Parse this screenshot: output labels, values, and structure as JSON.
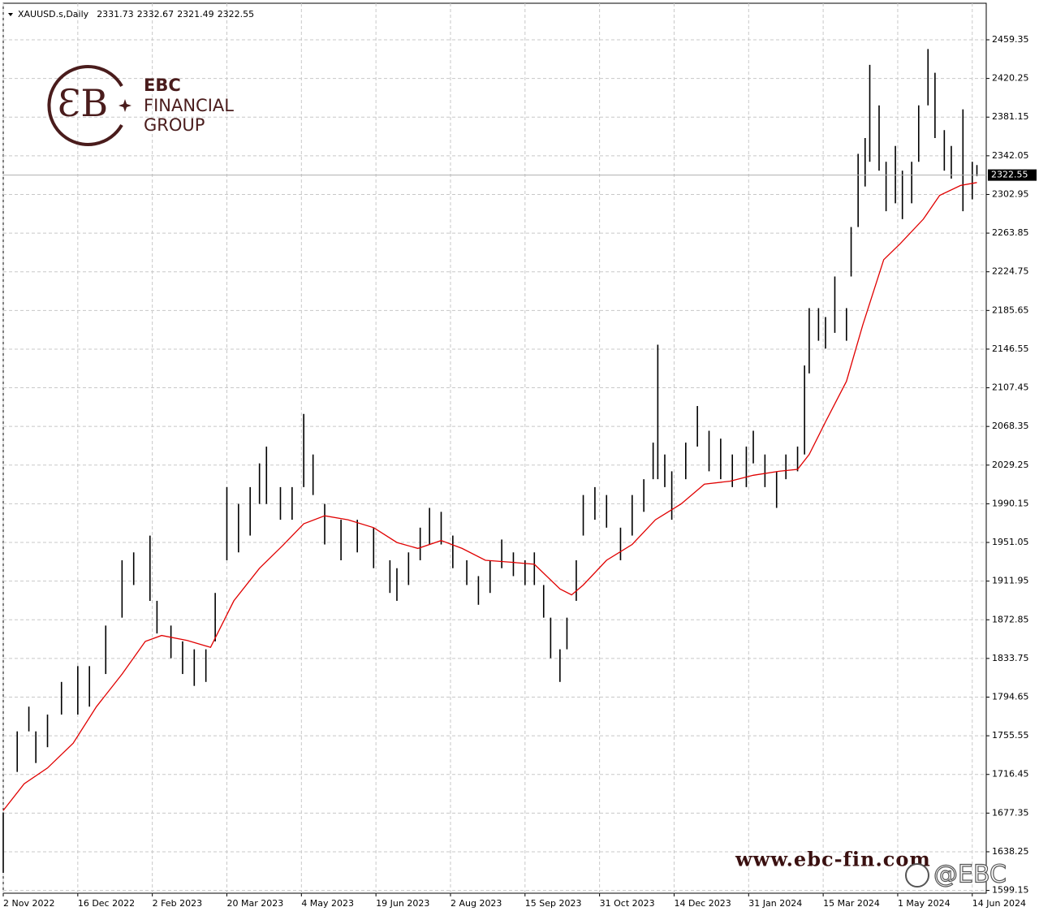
{
  "chart_data": {
    "type": "ohlc",
    "symbol": "XAUUSD.s,Daily",
    "header_values": [
      2331.73,
      2332.67,
      2321.49,
      2322.55
    ],
    "color": "#000000",
    "x": [
      0,
      6,
      11,
      14,
      19,
      25,
      32,
      37,
      44,
      51,
      56,
      63,
      66,
      72,
      77,
      82,
      87,
      91,
      96,
      101,
      106,
      110,
      113,
      119,
      124,
      129,
      133,
      138,
      145,
      152,
      159,
      166,
      169,
      174,
      179,
      183,
      188,
      193,
      199,
      204,
      209,
      214,
      219,
      224,
      228,
      232,
      235,
      239,
      242,
      246,
      249,
      254,
      259,
      265,
      270,
      275,
      279,
      281,
      284,
      287,
      293,
      298,
      303,
      308,
      313,
      319,
      322,
      327,
      332,
      336,
      341,
      344,
      346,
      350,
      353,
      357,
      362,
      364,
      367,
      370,
      372,
      376,
      379,
      383,
      386,
      390,
      393,
      397,
      400,
      404,
      407,
      412,
      416,
      418
    ],
    "high": [
      1678,
      1760,
      1785,
      1760,
      1777,
      1810,
      1826,
      1826,
      1867,
      1933,
      1941,
      1958,
      1892,
      1867,
      1851,
      1843,
      1843,
      1900,
      2007,
      1990,
      2007,
      2031,
      2048,
      2007,
      2007,
      2081,
      2040,
      1990,
      1974,
      1974,
      1966,
      1933,
      1925,
      1941,
      1966,
      1986,
      1982,
      1958,
      1933,
      1917,
      1933,
      1954,
      1941,
      1933,
      1941,
      1908,
      1875,
      1843,
      1875,
      1933,
      1999,
      2007,
      1999,
      1966,
      1999,
      2015,
      2052,
      2151,
      2040,
      2023,
      2052,
      2089,
      2064,
      2056,
      2040,
      2048,
      2064,
      2040,
      2023,
      2040,
      2048,
      2130,
      2188,
      2188,
      2179,
      2220,
      2188,
      2270,
      2344,
      2360,
      2434,
      2393,
      2336,
      2352,
      2327,
      2336,
      2393,
      2450,
      2426,
      2368,
      2352,
      2389,
      2336,
      2332.67
    ],
    "low": [
      1617,
      1719,
      1760,
      1728,
      1744,
      1777,
      1777,
      1785,
      1818,
      1875,
      1908,
      1892,
      1859,
      1834,
      1818,
      1806,
      1810,
      1851,
      1933,
      1941,
      1958,
      1990,
      1990,
      1974,
      1974,
      2007,
      1999,
      1949,
      1933,
      1941,
      1925,
      1900,
      1892,
      1908,
      1933,
      1949,
      1949,
      1925,
      1908,
      1888,
      1900,
      1925,
      1917,
      1908,
      1908,
      1875,
      1834,
      1810,
      1843,
      1892,
      1958,
      1974,
      1966,
      1933,
      1958,
      1982,
      2015,
      2015,
      2007,
      1974,
      2015,
      2048,
      2023,
      2015,
      2007,
      2007,
      2031,
      2007,
      1986,
      2015,
      2023,
      2040,
      2122,
      2155,
      2147,
      2163,
      2155,
      2220,
      2270,
      2311,
      2336,
      2327,
      2286,
      2294,
      2278,
      2294,
      2336,
      2393,
      2360,
      2327,
      2319,
      2286,
      2298,
      2321.49
    ],
    "moving_average": {
      "color": "#e00000",
      "x": [
        0,
        9,
        19,
        30,
        40,
        51,
        61,
        68,
        79,
        89,
        99,
        110,
        120,
        129,
        138,
        148,
        159,
        169,
        178,
        188,
        197,
        207,
        218,
        228,
        239,
        244,
        249,
        259,
        270,
        280,
        291,
        301,
        312,
        322,
        333,
        341,
        346,
        353,
        362,
        369,
        378,
        385,
        395,
        402,
        411,
        418
      ],
      "values": [
        1680,
        1707,
        1723,
        1748,
        1785,
        1818,
        1851,
        1857,
        1852,
        1845,
        1892,
        1925,
        1948,
        1970,
        1978,
        1974,
        1966,
        1951,
        1945,
        1953,
        1945,
        1933,
        1931,
        1929,
        1904,
        1898,
        1908,
        1933,
        1949,
        1974,
        1990,
        2010,
        2013,
        2019,
        2023,
        2025,
        2040,
        2073,
        2114,
        2171,
        2237,
        2253,
        2278,
        2302,
        2312,
        2315
      ]
    },
    "last_price": 2322.55,
    "xlim": [
      0,
      422
    ],
    "ylim": [
      1596.35,
      2496.3
    ],
    "xticks": [
      {
        "value": 0,
        "label": "2 Nov 2022"
      },
      {
        "value": 32,
        "label": "16 Dec 2022"
      },
      {
        "value": 64,
        "label": "2 Feb 2023"
      },
      {
        "value": 96,
        "label": "20 Mar 2023"
      },
      {
        "value": 128,
        "label": "4 May 2023"
      },
      {
        "value": 160,
        "label": "19 Jun 2023"
      },
      {
        "value": 192,
        "label": "2 Aug 2023"
      },
      {
        "value": 224,
        "label": "15 Sep 2023"
      },
      {
        "value": 256,
        "label": "31 Oct 2023"
      },
      {
        "value": 288,
        "label": "14 Dec 2023"
      },
      {
        "value": 320,
        "label": "31 Jan 2024"
      },
      {
        "value": 352,
        "label": "15 Mar 2024"
      },
      {
        "value": 384,
        "label": "1 May 2024"
      },
      {
        "value": 416,
        "label": "14 Jun 2024"
      }
    ],
    "yticks": [
      2459.35,
      2420.25,
      2381.15,
      2342.05,
      2302.95,
      2263.85,
      2224.75,
      2185.65,
      2146.55,
      2107.45,
      2068.35,
      2029.25,
      1990.15,
      1951.05,
      1911.95,
      1872.85,
      1833.75,
      1794.65,
      1755.55,
      1716.45,
      1677.35,
      1638.25,
      1599.15
    ],
    "grid": true
  },
  "logo": {
    "line1": "EBC",
    "line2": "FINANCIAL",
    "line3": "GROUP"
  },
  "watermark": {
    "url": "www.ebc-fin.com",
    "handle": "@EBC"
  }
}
